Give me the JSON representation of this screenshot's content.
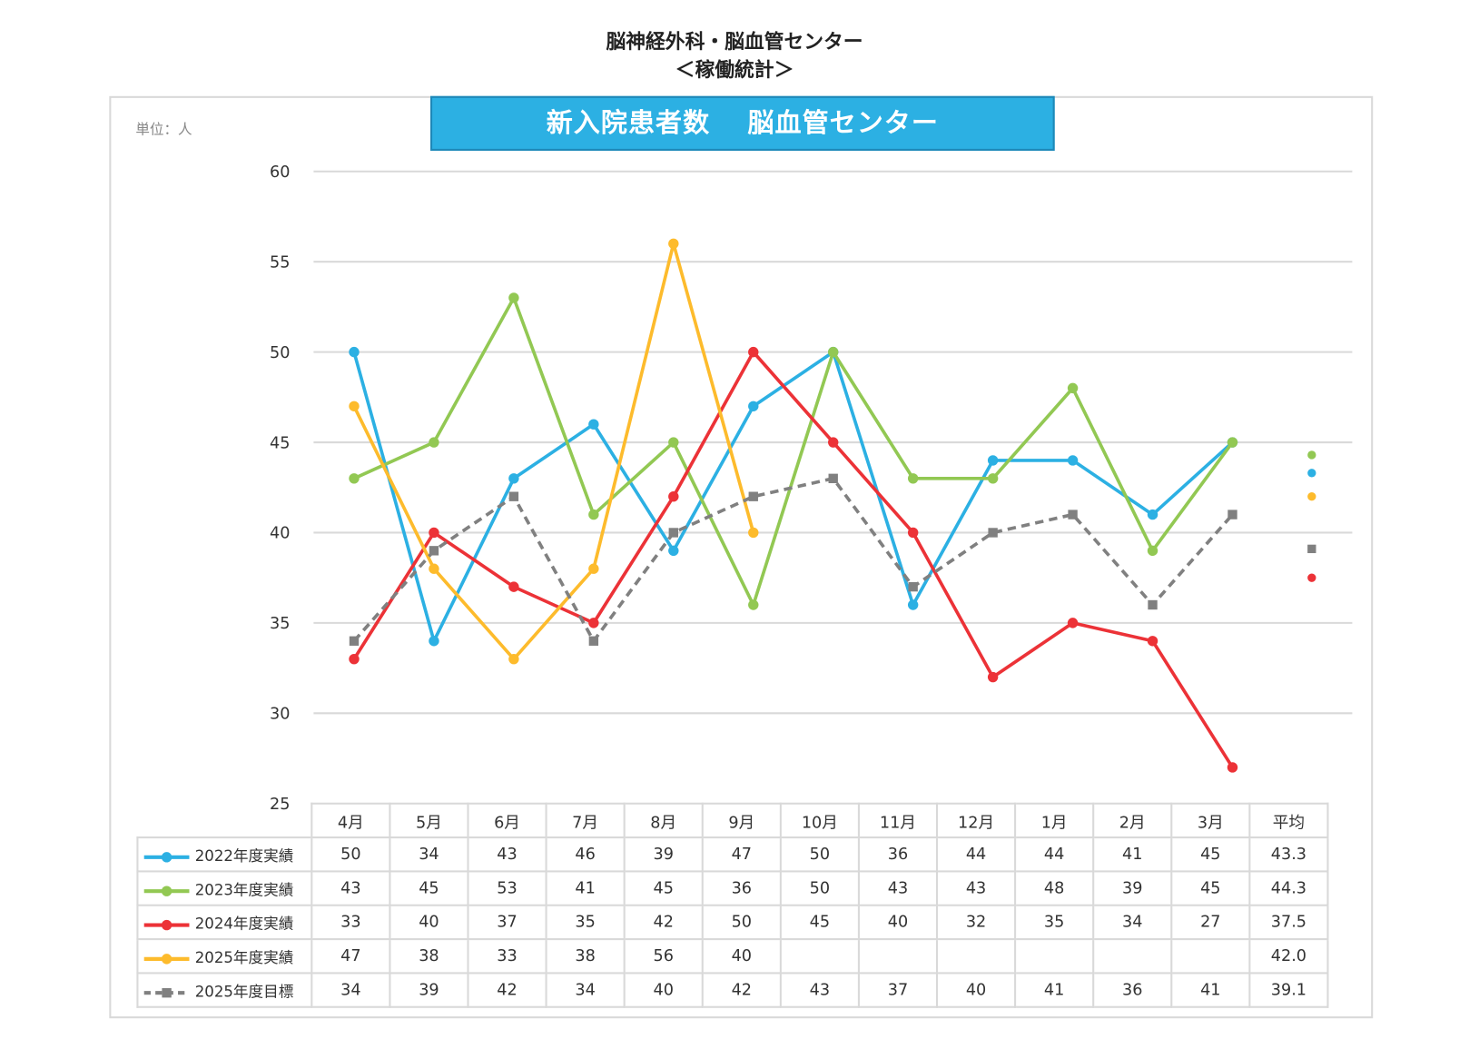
{
  "header": {
    "title": "脳神経外科・脳血管センター",
    "subtitle": "＜稼働統計＞"
  },
  "chart_data": {
    "type": "line",
    "title": "新入院患者数　 脳血管センター",
    "unit_label": "単位：人",
    "categories": [
      "4月",
      "5月",
      "6月",
      "7月",
      "8月",
      "9月",
      "10月",
      "11月",
      "12月",
      "1月",
      "2月",
      "3月"
    ],
    "average_label": "平均",
    "ylim": [
      25,
      60
    ],
    "yticks": [
      25,
      30,
      35,
      40,
      45,
      50,
      55,
      60
    ],
    "grid": true,
    "legend": "table-bottom",
    "series": [
      {
        "name": "2022年度実績",
        "color": "#2cb0e3",
        "marker": "circle",
        "dashed": false,
        "values": [
          50,
          34,
          43,
          46,
          39,
          47,
          50,
          36,
          44,
          44,
          41,
          45
        ],
        "average": "43.3"
      },
      {
        "name": "2023年度実績",
        "color": "#92c853",
        "marker": "circle",
        "dashed": false,
        "values": [
          43,
          45,
          53,
          41,
          45,
          36,
          50,
          43,
          43,
          48,
          39,
          45
        ],
        "average": "44.3"
      },
      {
        "name": "2024年度実績",
        "color": "#ec3237",
        "marker": "circle",
        "dashed": false,
        "values": [
          33,
          40,
          37,
          35,
          42,
          50,
          45,
          40,
          32,
          35,
          34,
          27
        ],
        "average": "37.5"
      },
      {
        "name": "2025年度実績",
        "color": "#fdbb2c",
        "marker": "circle",
        "dashed": false,
        "values": [
          47,
          38,
          33,
          38,
          56,
          40,
          null,
          null,
          null,
          null,
          null,
          null
        ],
        "average": "42.0"
      },
      {
        "name": "2025年度目標",
        "color": "#808080",
        "marker": "square",
        "dashed": true,
        "values": [
          34,
          39,
          42,
          34,
          40,
          42,
          43,
          37,
          40,
          41,
          36,
          41
        ],
        "average": "39.1"
      }
    ]
  }
}
